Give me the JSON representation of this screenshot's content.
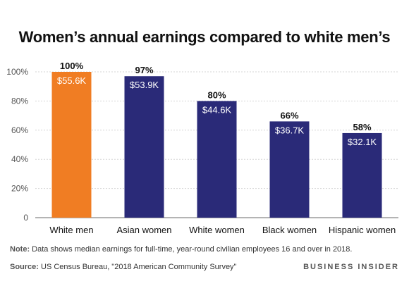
{
  "chart_data": {
    "type": "bar",
    "title": "Women’s annual earnings compared to white men’s",
    "categories": [
      "White men",
      "Asian women",
      "White women",
      "Black women",
      "Hispanic women"
    ],
    "values": [
      100,
      97,
      80,
      66,
      58
    ],
    "percent_labels": [
      "100%",
      "97%",
      "80%",
      "66%",
      "58%"
    ],
    "earnings_labels": [
      "$55.6K",
      "$53.9K",
      "$44.6K",
      "$36.7K",
      "$32.1K"
    ],
    "yticks": [
      0,
      20,
      40,
      60,
      80,
      100
    ],
    "ytick_labels": [
      "0",
      "20%",
      "40%",
      "60%",
      "80%",
      "100%"
    ],
    "ylim": [
      0,
      100
    ],
    "grid": true,
    "colors": [
      "#F07D23",
      "#2A2A78",
      "#2A2A78",
      "#2A2A78",
      "#2A2A78"
    ]
  },
  "footer": {
    "note_label": "Note:",
    "note_text": "Data shows median earnings for full-time, year-round civilian employees 16 and over in 2018.",
    "source_label": "Source:",
    "source_text": "US Census Bureau, \"2018 American Community Survey\"",
    "brand": "BUSINESS INSIDER"
  }
}
